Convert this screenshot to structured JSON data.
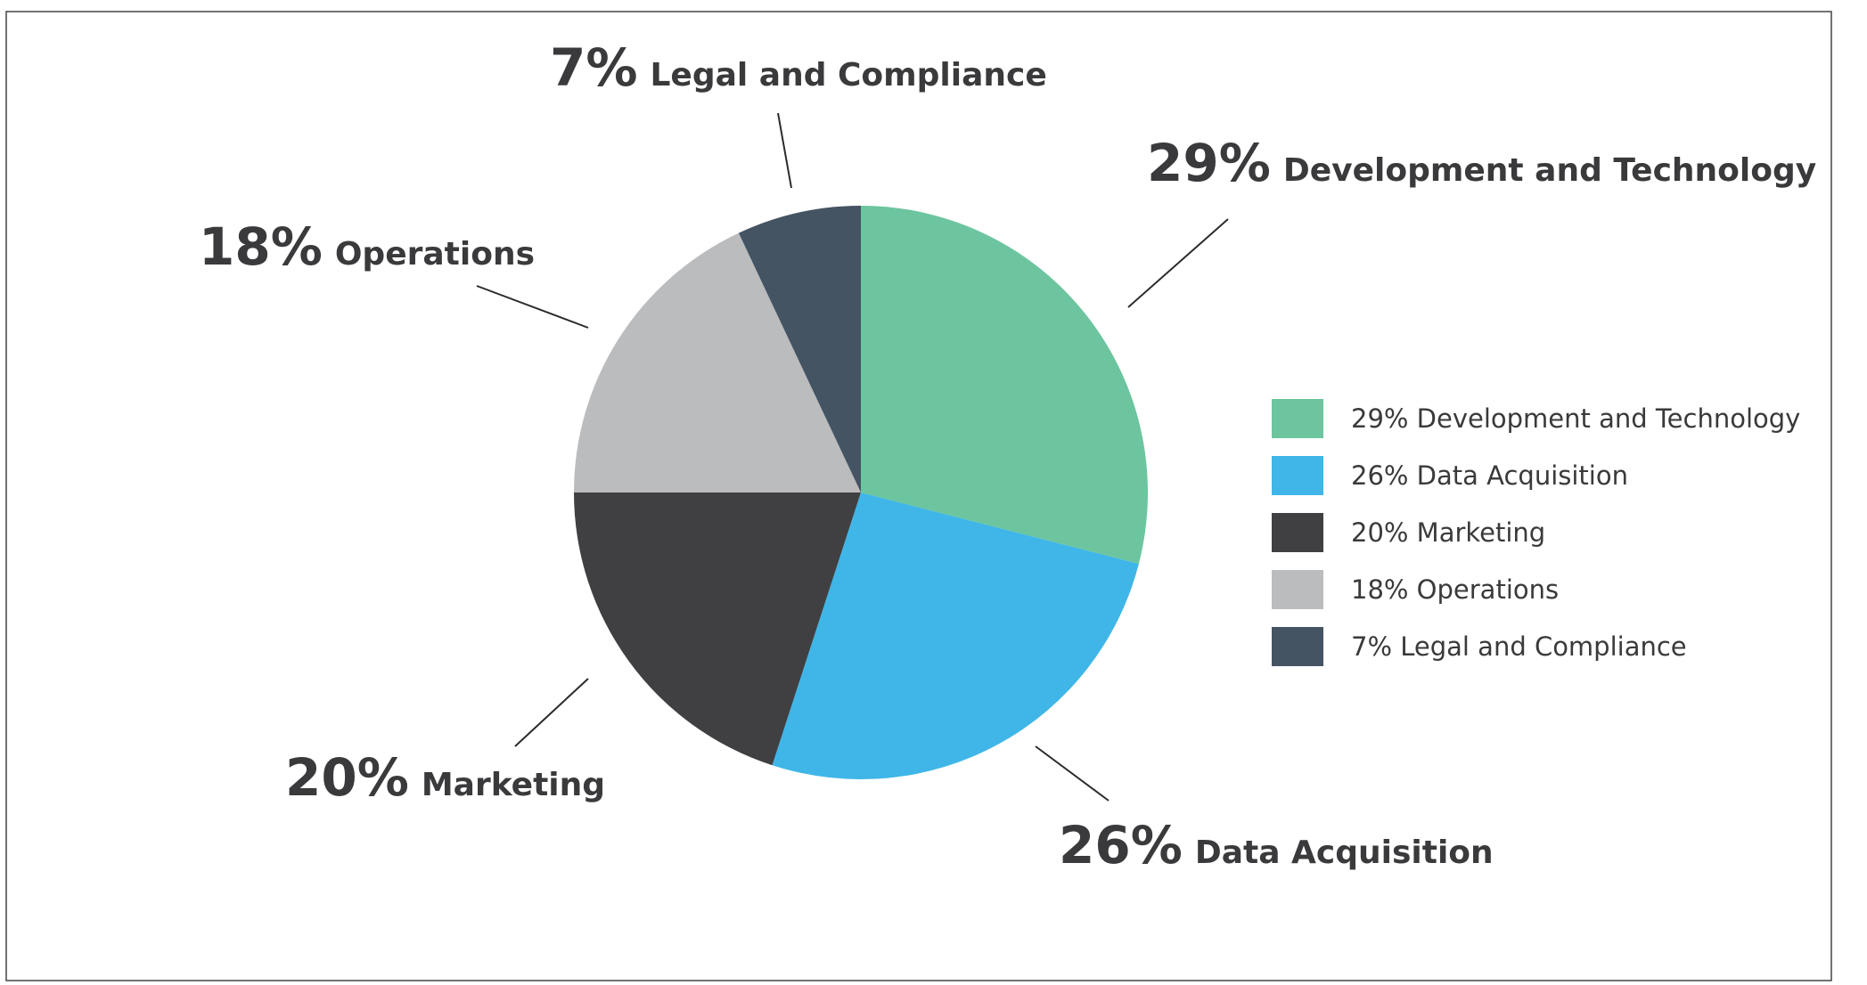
{
  "chart_data": {
    "type": "pie",
    "title": "",
    "slices": [
      {
        "label": "Development and Technology",
        "value": 29,
        "pct_text": "29%",
        "legend_text": "29% Development and Technology",
        "color": "#6cc59e"
      },
      {
        "label": "Data Acquisition",
        "value": 26,
        "pct_text": "26%",
        "legend_text": "26% Data Acquisition",
        "color": "#3fb6e7"
      },
      {
        "label": "Marketing",
        "value": 20,
        "pct_text": "20%",
        "legend_text": "20% Marketing",
        "color": "#404043"
      },
      {
        "label": "Operations",
        "value": 18,
        "pct_text": "18%",
        "legend_text": "18% Operations",
        "color": "#bbbcbe"
      },
      {
        "label": "Legal and Compliance",
        "value": 7,
        "pct_text": "7%",
        "legend_text": "7% Legal and Compliance",
        "color": "#455463"
      }
    ],
    "start_angle_deg": 0,
    "direction": "clockwise",
    "legend_position": "right"
  }
}
